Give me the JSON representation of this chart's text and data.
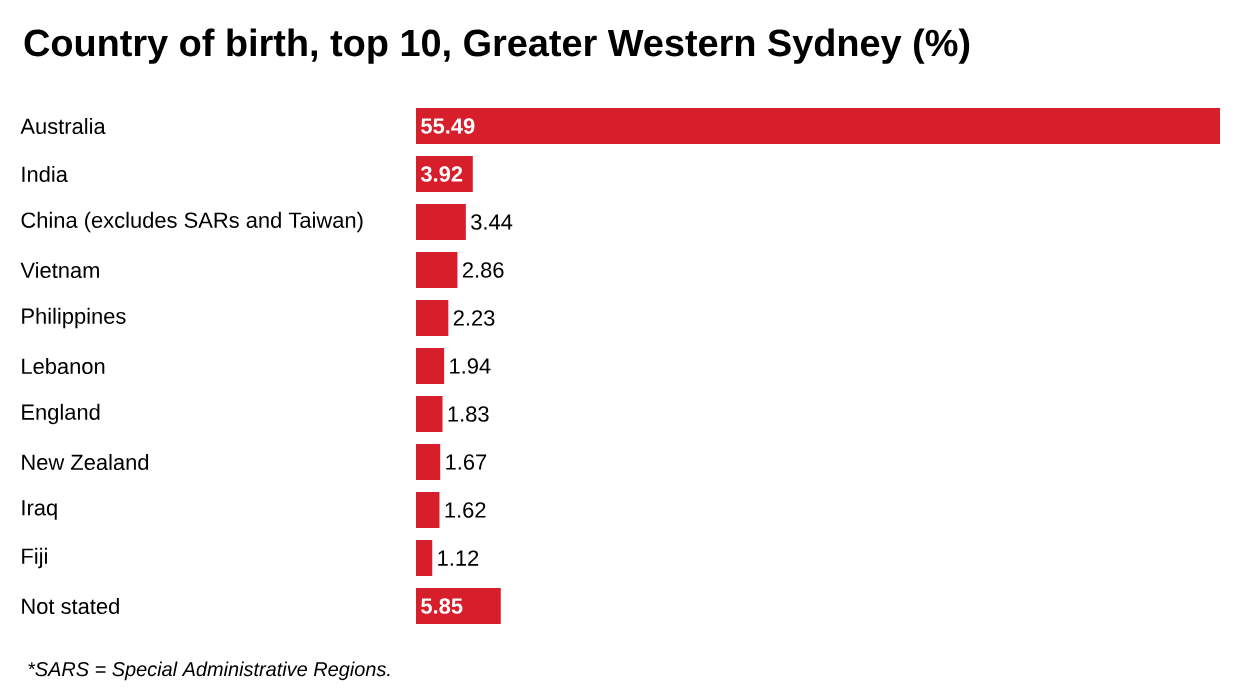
{
  "chart_data": {
    "type": "bar",
    "orientation": "horizontal",
    "title": "Country of birth, top 10, Greater Western Sydney (%)",
    "categories": [
      "Australia",
      "India",
      "China (excludes SARs and Taiwan)",
      "Vietnam",
      "Philippines",
      "Lebanon",
      "England",
      "New Zealand",
      "Iraq",
      "Fiji",
      "Not stated"
    ],
    "values": [
      55.49,
      3.92,
      3.44,
      2.86,
      2.23,
      1.94,
      1.83,
      1.67,
      1.62,
      1.12,
      5.85
    ],
    "color": "#d71f2b",
    "data_labels": true,
    "annotations": [
      "*SARS = Special Administrative Regions."
    ]
  }
}
